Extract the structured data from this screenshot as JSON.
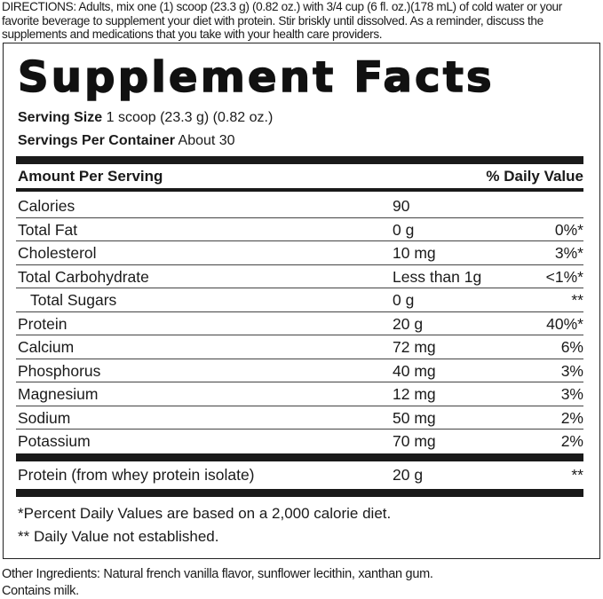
{
  "directions": "DIRECTIONS: Adults, mix one (1) scoop (23.3 g) (0.82 oz.) with 3/4 cup (6 fl. oz.)(178 mL) of cold water or your favorite beverage to supplement your diet with protein. Stir briskly until dissolved. As a reminder, discuss the supplements and medications that you take with your health care providers.",
  "panel": {
    "title": "Supplement Facts",
    "serving_size_label": "Serving Size",
    "serving_size_value": "1 scoop (23.3 g) (0.82 oz.)",
    "servings_label": "Servings Per Container",
    "servings_value": "About 30",
    "header_amount": "Amount Per Serving",
    "header_dv": "% Daily Value",
    "rows": [
      {
        "name": "Calories",
        "amount": "90",
        "dv": ""
      },
      {
        "name": "Total Fat",
        "amount": "0 g",
        "dv": "0%*"
      },
      {
        "name": "Cholesterol",
        "amount": "10 mg",
        "dv": "3%*"
      },
      {
        "name": "Total Carbohydrate",
        "amount": "Less than 1g",
        "dv": "<1%*"
      },
      {
        "name": "Total Sugars",
        "amount": "0 g",
        "dv": "**"
      },
      {
        "name": "Protein",
        "amount": "20 g",
        "dv": "40%*"
      },
      {
        "name": "Calcium",
        "amount": "72 mg",
        "dv": "6%"
      },
      {
        "name": "Phosphorus",
        "amount": "40 mg",
        "dv": "3%"
      },
      {
        "name": "Magnesium",
        "amount": "12 mg",
        "dv": "3%"
      },
      {
        "name": "Sodium",
        "amount": "50 mg",
        "dv": "2%"
      },
      {
        "name": "Potassium",
        "amount": "70 mg",
        "dv": "2%"
      }
    ],
    "blend": {
      "name": "Protein (from whey protein isolate)",
      "amount": "20 g",
      "dv": "**"
    },
    "footnote1": "*Percent Daily Values are based on a 2,000 calorie diet.",
    "footnote2": "** Daily Value not established."
  },
  "other_ingredients": "Other Ingredients:  Natural french vanilla flavor, sunflower lecithin, xanthan gum.",
  "contains": "Contains milk."
}
